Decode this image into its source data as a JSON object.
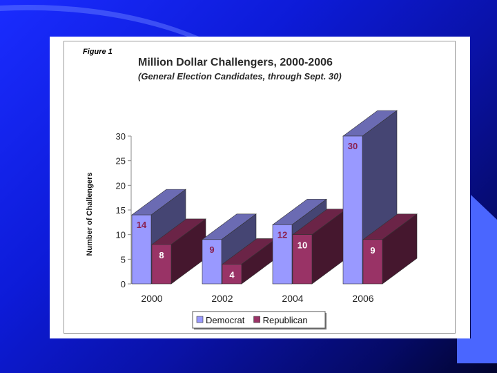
{
  "figure_label": "Figure 1",
  "chart_data": {
    "type": "bar",
    "title": "Million Dollar Challengers, 2000-2006",
    "subtitle": "(General Election Candidates, through Sept. 30)",
    "xlabel": "",
    "ylabel": "Number of Challengers",
    "categories": [
      "2000",
      "2002",
      "2004",
      "2006"
    ],
    "series": [
      {
        "name": "Democrat",
        "values": [
          14,
          9,
          12,
          30
        ],
        "color": "#9999ff"
      },
      {
        "name": "Republican",
        "values": [
          8,
          4,
          10,
          9
        ],
        "color": "#993366"
      }
    ],
    "ylim": [
      0,
      30
    ],
    "yticks": [
      0,
      5,
      10,
      15,
      20,
      25,
      30
    ],
    "grid": false,
    "legend": "bottom",
    "style": "3d"
  }
}
